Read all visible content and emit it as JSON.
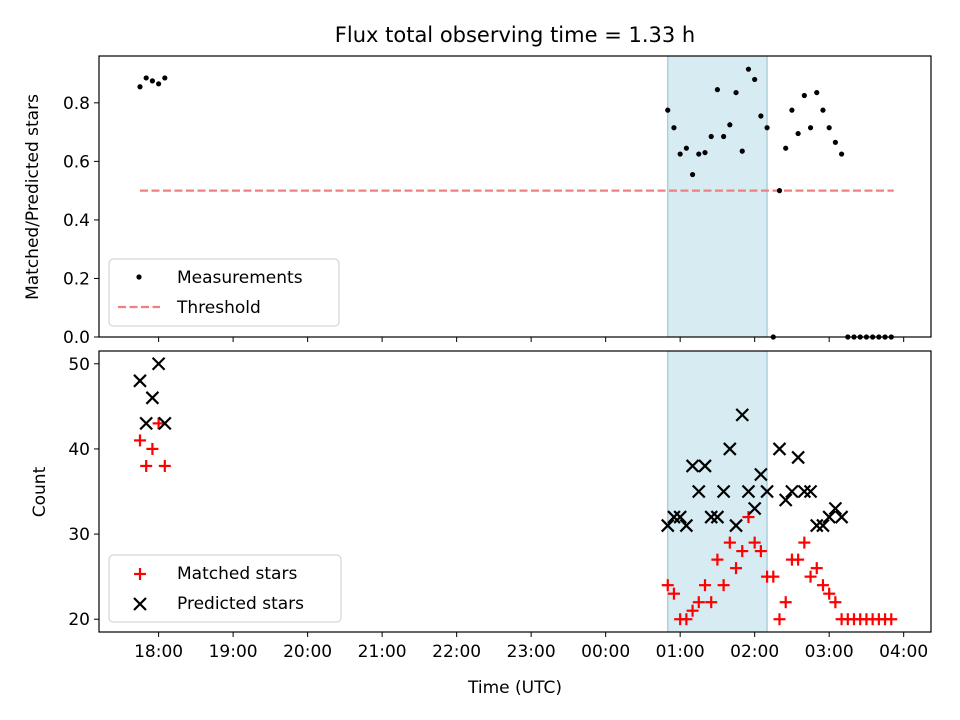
{
  "chart_data": {
    "title": "Flux total observing time = 1.33 h",
    "x": {
      "label": "Time (UTC)",
      "domain": [
        "2021-01-01T17:12",
        "2021-01-02T04:22"
      ],
      "ticks": [
        "18:00",
        "19:00",
        "20:00",
        "21:00",
        "22:00",
        "23:00",
        "00:00",
        "01:00",
        "02:00",
        "03:00",
        "04:00"
      ]
    },
    "highlight_span": {
      "start": "2021-01-02T00:50",
      "end": "2021-01-02T02:10",
      "color": "#add8e6"
    },
    "panels": [
      {
        "type": "scatter",
        "ylabel": "Matched/Predicted stars",
        "ylim": [
          0,
          0.96
        ],
        "yticks": [
          0.0,
          0.2,
          0.4,
          0.6,
          0.8
        ],
        "ytick_labels": [
          "0.0",
          "0.2",
          "0.4",
          "0.6",
          "0.8"
        ],
        "legend": {
          "position": "lower-left",
          "entries": [
            "Measurements",
            "Threshold"
          ]
        },
        "threshold": {
          "name": "Threshold",
          "value": 0.5,
          "from": "2021-01-01T17:45",
          "to": "2021-01-02T03:52",
          "color": "#f08080",
          "style": "dashed"
        },
        "series": [
          {
            "name": "Measurements",
            "marker": "dot",
            "color": "#000000",
            "points": [
              [
                "2021-01-01T17:45",
                0.855
              ],
              [
                "2021-01-01T17:50",
                0.885
              ],
              [
                "2021-01-01T17:55",
                0.875
              ],
              [
                "2021-01-01T18:00",
                0.865
              ],
              [
                "2021-01-01T18:05",
                0.885
              ],
              [
                "2021-01-02T00:50",
                0.775
              ],
              [
                "2021-01-02T00:55",
                0.715
              ],
              [
                "2021-01-02T01:00",
                0.625
              ],
              [
                "2021-01-02T01:05",
                0.645
              ],
              [
                "2021-01-02T01:10",
                0.555
              ],
              [
                "2021-01-02T01:15",
                0.625
              ],
              [
                "2021-01-02T01:20",
                0.63
              ],
              [
                "2021-01-02T01:25",
                0.685
              ],
              [
                "2021-01-02T01:30",
                0.845
              ],
              [
                "2021-01-02T01:35",
                0.685
              ],
              [
                "2021-01-02T01:40",
                0.725
              ],
              [
                "2021-01-02T01:45",
                0.835
              ],
              [
                "2021-01-02T01:50",
                0.635
              ],
              [
                "2021-01-02T01:55",
                0.915
              ],
              [
                "2021-01-02T02:00",
                0.88
              ],
              [
                "2021-01-02T02:05",
                0.755
              ],
              [
                "2021-01-02T02:10",
                0.715
              ],
              [
                "2021-01-02T02:15",
                0.0
              ],
              [
                "2021-01-02T02:20",
                0.5
              ],
              [
                "2021-01-02T02:25",
                0.645
              ],
              [
                "2021-01-02T02:30",
                0.775
              ],
              [
                "2021-01-02T02:35",
                0.695
              ],
              [
                "2021-01-02T02:40",
                0.825
              ],
              [
                "2021-01-02T02:45",
                0.715
              ],
              [
                "2021-01-02T02:50",
                0.835
              ],
              [
                "2021-01-02T02:55",
                0.775
              ],
              [
                "2021-01-02T03:00",
                0.715
              ],
              [
                "2021-01-02T03:05",
                0.665
              ],
              [
                "2021-01-02T03:10",
                0.625
              ],
              [
                "2021-01-02T03:15",
                0.0
              ],
              [
                "2021-01-02T03:20",
                0.0
              ],
              [
                "2021-01-02T03:25",
                0.0
              ],
              [
                "2021-01-02T03:30",
                0.0
              ],
              [
                "2021-01-02T03:35",
                0.0
              ],
              [
                "2021-01-02T03:40",
                0.0
              ],
              [
                "2021-01-02T03:45",
                0.0
              ],
              [
                "2021-01-02T03:50",
                0.0
              ]
            ]
          }
        ]
      },
      {
        "type": "scatter",
        "ylabel": "Count",
        "ylim": [
          18.5,
          51.5
        ],
        "yticks": [
          20,
          30,
          40,
          50
        ],
        "ytick_labels": [
          "20",
          "30",
          "40",
          "50"
        ],
        "legend": {
          "position": "lower-left",
          "entries": [
            "Matched stars",
            "Predicted stars"
          ]
        },
        "series": [
          {
            "name": "Matched stars",
            "marker": "plus",
            "color": "#ff0000",
            "points": [
              [
                "2021-01-01T17:45",
                41
              ],
              [
                "2021-01-01T17:50",
                38
              ],
              [
                "2021-01-01T17:55",
                40
              ],
              [
                "2021-01-01T18:00",
                43
              ],
              [
                "2021-01-01T18:05",
                38
              ],
              [
                "2021-01-02T00:50",
                24
              ],
              [
                "2021-01-02T00:55",
                23
              ],
              [
                "2021-01-02T01:00",
                20
              ],
              [
                "2021-01-02T01:05",
                20
              ],
              [
                "2021-01-02T01:10",
                21
              ],
              [
                "2021-01-02T01:15",
                22
              ],
              [
                "2021-01-02T01:20",
                24
              ],
              [
                "2021-01-02T01:25",
                22
              ],
              [
                "2021-01-02T01:30",
                27
              ],
              [
                "2021-01-02T01:35",
                24
              ],
              [
                "2021-01-02T01:40",
                29
              ],
              [
                "2021-01-02T01:45",
                26
              ],
              [
                "2021-01-02T01:50",
                28
              ],
              [
                "2021-01-02T01:55",
                32
              ],
              [
                "2021-01-02T02:00",
                29
              ],
              [
                "2021-01-02T02:05",
                28
              ],
              [
                "2021-01-02T02:10",
                25
              ],
              [
                "2021-01-02T02:15",
                25
              ],
              [
                "2021-01-02T02:20",
                20
              ],
              [
                "2021-01-02T02:25",
                22
              ],
              [
                "2021-01-02T02:30",
                27
              ],
              [
                "2021-01-02T02:35",
                27
              ],
              [
                "2021-01-02T02:40",
                29
              ],
              [
                "2021-01-02T02:45",
                25
              ],
              [
                "2021-01-02T02:50",
                26
              ],
              [
                "2021-01-02T02:55",
                24
              ],
              [
                "2021-01-02T03:00",
                23
              ],
              [
                "2021-01-02T03:05",
                22
              ],
              [
                "2021-01-02T03:10",
                20
              ],
              [
                "2021-01-02T03:15",
                20
              ],
              [
                "2021-01-02T03:20",
                20
              ],
              [
                "2021-01-02T03:25",
                20
              ],
              [
                "2021-01-02T03:30",
                20
              ],
              [
                "2021-01-02T03:35",
                20
              ],
              [
                "2021-01-02T03:40",
                20
              ],
              [
                "2021-01-02T03:45",
                20
              ],
              [
                "2021-01-02T03:50",
                20
              ]
            ]
          },
          {
            "name": "Predicted stars",
            "marker": "x",
            "color": "#000000",
            "points": [
              [
                "2021-01-01T17:45",
                48
              ],
              [
                "2021-01-01T17:50",
                43
              ],
              [
                "2021-01-01T17:55",
                46
              ],
              [
                "2021-01-01T18:00",
                50
              ],
              [
                "2021-01-01T18:05",
                43
              ],
              [
                "2021-01-02T00:50",
                31
              ],
              [
                "2021-01-02T00:55",
                32
              ],
              [
                "2021-01-02T01:00",
                32
              ],
              [
                "2021-01-02T01:05",
                31
              ],
              [
                "2021-01-02T01:10",
                38
              ],
              [
                "2021-01-02T01:15",
                35
              ],
              [
                "2021-01-02T01:20",
                38
              ],
              [
                "2021-01-02T01:25",
                32
              ],
              [
                "2021-01-02T01:30",
                32
              ],
              [
                "2021-01-02T01:35",
                35
              ],
              [
                "2021-01-02T01:40",
                40
              ],
              [
                "2021-01-02T01:45",
                31
              ],
              [
                "2021-01-02T01:50",
                44
              ],
              [
                "2021-01-02T01:55",
                35
              ],
              [
                "2021-01-02T02:00",
                33
              ],
              [
                "2021-01-02T02:05",
                37
              ],
              [
                "2021-01-02T02:10",
                35
              ],
              [
                "2021-01-02T02:20",
                40
              ],
              [
                "2021-01-02T02:25",
                34
              ],
              [
                "2021-01-02T02:30",
                35
              ],
              [
                "2021-01-02T02:35",
                39
              ],
              [
                "2021-01-02T02:40",
                35
              ],
              [
                "2021-01-02T02:45",
                35
              ],
              [
                "2021-01-02T02:50",
                31
              ],
              [
                "2021-01-02T02:55",
                31
              ],
              [
                "2021-01-02T03:00",
                32
              ],
              [
                "2021-01-02T03:05",
                33
              ],
              [
                "2021-01-02T03:10",
                32
              ]
            ]
          }
        ]
      }
    ]
  }
}
